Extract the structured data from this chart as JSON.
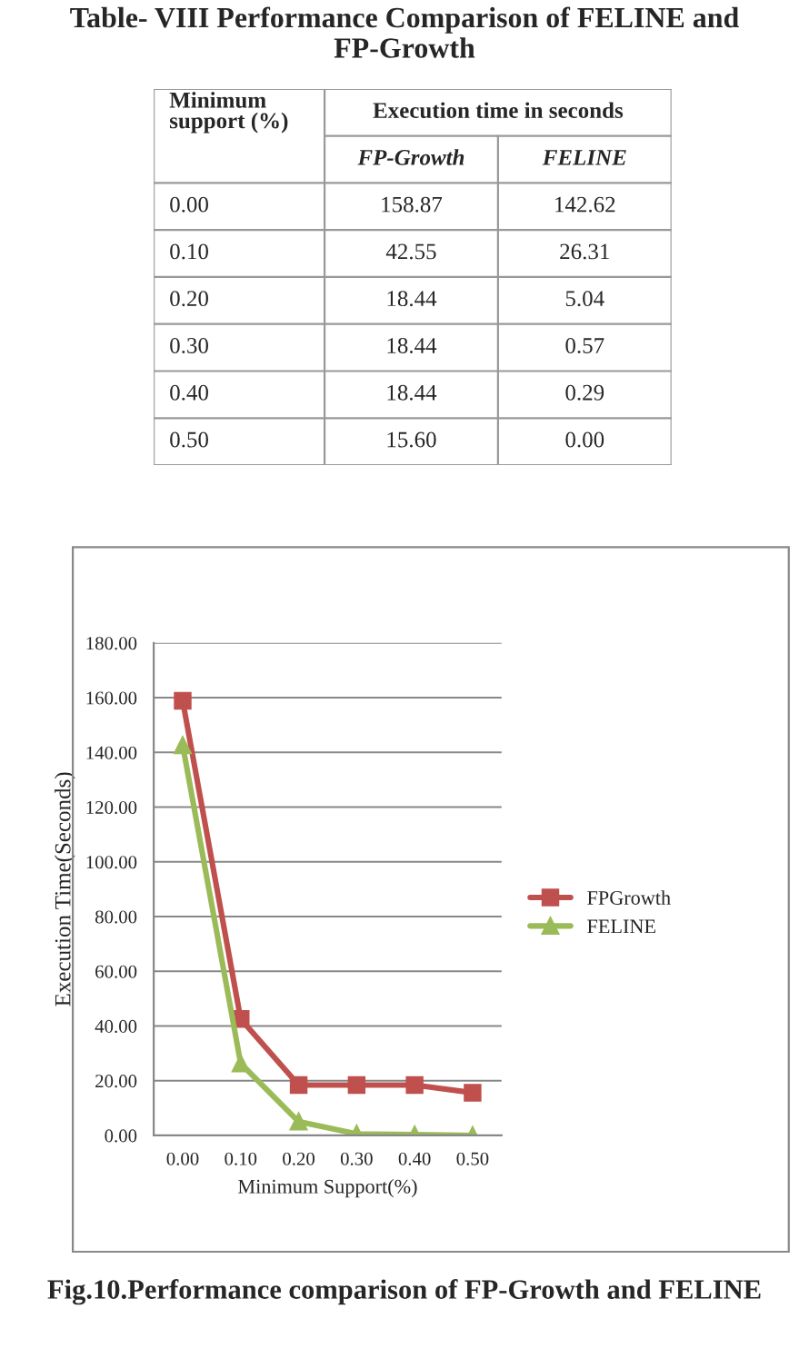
{
  "chart_data": {
    "type": "line",
    "title": "Table- VIII Performance Comparison of FELINE and FP-Growth",
    "xlabel": "Minimum Support(%)",
    "ylabel": "Execution Time(Seconds)",
    "categories": [
      "0.00",
      "0.10",
      "0.20",
      "0.30",
      "0.40",
      "0.50"
    ],
    "series": [
      {
        "name": "FPGrowth",
        "color": "#c0504d",
        "marker": "square",
        "values": [
          158.87,
          42.55,
          18.44,
          18.44,
          18.44,
          15.6
        ]
      },
      {
        "name": "FELINE",
        "color": "#9bbb59",
        "marker": "triangle",
        "values": [
          142.62,
          26.31,
          5.04,
          0.57,
          0.29,
          0.0
        ]
      }
    ],
    "ylim": [
      0,
      180
    ],
    "yticks": [
      {
        "value": 0,
        "label": "0.00"
      },
      {
        "value": 20,
        "label": "20.00"
      },
      {
        "value": 40,
        "label": "40.00"
      },
      {
        "value": 60,
        "label": "60.00"
      },
      {
        "value": 80,
        "label": "80.00"
      },
      {
        "value": 100,
        "label": "100.00"
      },
      {
        "value": 120,
        "label": "120.00"
      },
      {
        "value": 140,
        "label": "140.00"
      },
      {
        "value": 160,
        "label": "160.00"
      },
      {
        "value": 180,
        "label": "180.00"
      }
    ],
    "grid": "y",
    "legend": "right",
    "annotations": [
      "Minimum support (%)",
      "Execution time in seconds",
      "FP-Growth",
      "FELINE",
      "158.87",
      "142.62",
      "42.55",
      "26.31",
      "18.44",
      "5.04",
      "18.44",
      "0.57",
      "18.44",
      "0.29",
      "15.60",
      "0.00",
      "Fig.10.Performance comparison of FP-Growth and FELINE"
    ]
  }
}
